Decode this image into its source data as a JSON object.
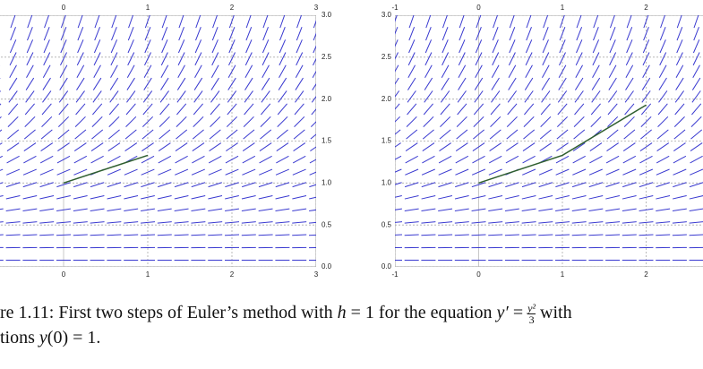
{
  "chart_data": [
    {
      "type": "line",
      "xlim": [
        -1,
        3
      ],
      "ylim": [
        0,
        3
      ],
      "xticks": [
        0,
        1,
        2,
        3
      ],
      "yticks": [
        {
          "value": 0,
          "label": "0.0"
        },
        {
          "value": 0.5,
          "label": "0.5"
        },
        {
          "value": 1,
          "label": "1.0"
        },
        {
          "value": 1.5,
          "label": "1.5"
        },
        {
          "value": 2,
          "label": "2.0"
        },
        {
          "value": 2.5,
          "label": "2.5"
        },
        {
          "value": 3,
          "label": "3.0"
        }
      ],
      "grid": true,
      "x": [
        0,
        1
      ],
      "series": [
        {
          "color": "#2f5f2f",
          "values": [
            1,
            1.33
          ]
        }
      ]
    },
    {
      "type": "line",
      "xlim": [
        -1,
        3
      ],
      "ylim": [
        0,
        3
      ],
      "xticks": [
        -1,
        0,
        1,
        2
      ],
      "yticks": [
        {
          "value": 0,
          "label": "0.0"
        },
        {
          "value": 0.5,
          "label": "0.5"
        },
        {
          "value": 1,
          "label": "1.0"
        },
        {
          "value": 1.5,
          "label": "1.5"
        },
        {
          "value": 2,
          "label": "2.0"
        },
        {
          "value": 2.5,
          "label": "2.5"
        },
        {
          "value": 3,
          "label": "3.0"
        }
      ],
      "grid": true,
      "x": [
        0,
        1,
        2
      ],
      "series": [
        {
          "color": "#2f5f2f",
          "values": [
            1,
            1.33,
            1.93
          ]
        }
      ]
    }
  ],
  "caption": {
    "line1_a": "re 1.11: First two steps of Euler’s method with ",
    "h": "h",
    "line1_b": " = 1 for the equation ",
    "yprime": "y′",
    "eq": " = ",
    "num": "y²",
    "den": "3",
    "line1_c": " with",
    "line2_a": "tions ",
    "line2_b": "y",
    "line2_c": "(0) = 1."
  }
}
